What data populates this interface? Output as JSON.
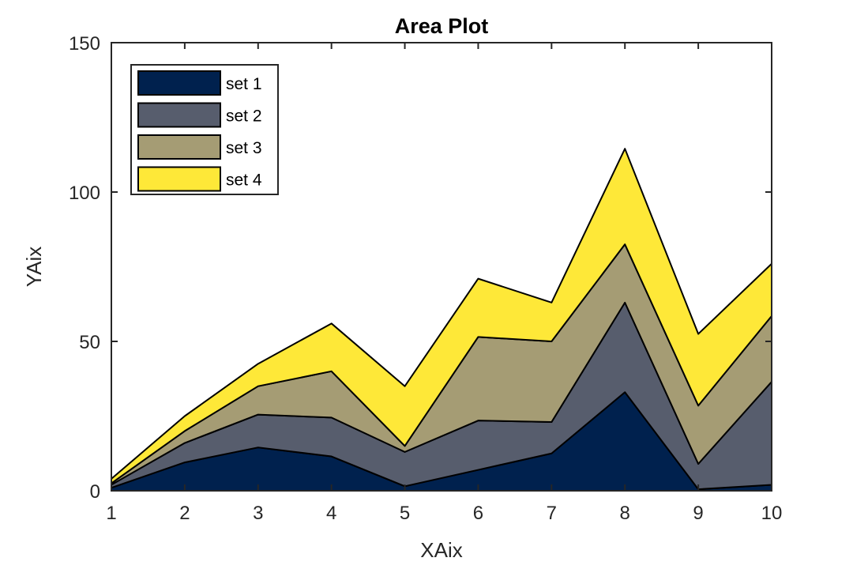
{
  "chart_data": {
    "type": "area",
    "stacked": true,
    "title": "Area Plot",
    "xlabel": "XAix",
    "ylabel": "YAix",
    "x": [
      1,
      2,
      3,
      4,
      5,
      6,
      7,
      8,
      9,
      10
    ],
    "xlim": [
      1,
      10
    ],
    "ylim": [
      0,
      150
    ],
    "xticks": [
      1,
      2,
      3,
      4,
      5,
      6,
      7,
      8,
      9,
      10
    ],
    "yticks": [
      0,
      50,
      100,
      150
    ],
    "grid": false,
    "legend_position": "top-left",
    "series": [
      {
        "name": "set 1",
        "color": "#00214e",
        "values": [
          1,
          9.5,
          14.5,
          11.5,
          1.5,
          7,
          12.5,
          33,
          0.5,
          2
        ]
      },
      {
        "name": "set 2",
        "color": "#575d6d",
        "values": [
          1,
          6.5,
          11,
          13,
          11.5,
          16.5,
          10.5,
          30,
          8.5,
          34.5
        ]
      },
      {
        "name": "set 3",
        "color": "#a59c74",
        "values": [
          0.5,
          4,
          9.5,
          15.5,
          2,
          28,
          27,
          19.5,
          19.5,
          22
        ]
      },
      {
        "name": "set 4",
        "color": "#fee838",
        "values": [
          1.5,
          5,
          7.5,
          16,
          20,
          19.5,
          13,
          32,
          24,
          17.5
        ]
      }
    ]
  }
}
